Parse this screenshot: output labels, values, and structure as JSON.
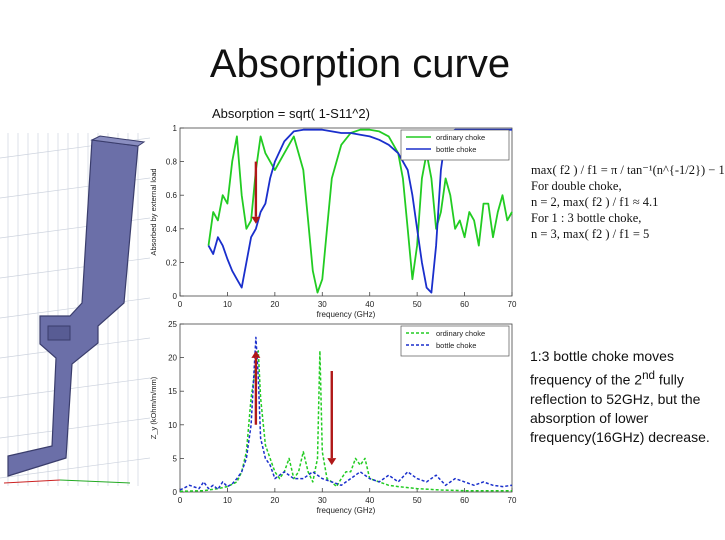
{
  "slide": {
    "title": "Absorption curve",
    "subtitle": "Absorption = sqrt( 1-S11^2)",
    "formula_lines": [
      "max( f2 ) / f1 = π / tan⁻¹(n^{-1/2}) − 1",
      "For double choke,",
      "n = 2, max( f2 ) / f1 ≈ 4.1",
      "For 1 : 3 bottle choke,",
      "n = 3, max( f2 ) / f1 = 5"
    ],
    "note": "1:3 bottle choke moves frequency of the 2nd fully reflection to 52GHz, but the absorption of lower frequency(16GHz) decrease.",
    "note_parts": {
      "before": "1:3 bottle choke moves frequency of the 2",
      "sup": "nd",
      "after": " fully reflection to 52GHz, but the absorption of lower frequency(16GHz) decrease."
    },
    "model_image": "3d-choke-cross-section-model"
  },
  "chart_data": [
    {
      "type": "line",
      "title": "",
      "xlabel": "frequency (GHz)",
      "ylabel": "Absorbed by external load",
      "xlim": [
        0,
        70
      ],
      "ylim": [
        0,
        1
      ],
      "x_ticks": [
        "0",
        "10",
        "20",
        "30",
        "40",
        "50",
        "60",
        "70"
      ],
      "y_ticks": [
        "0",
        "0.2",
        "0.4",
        "0.6",
        "0.8",
        "1"
      ],
      "legend": "top-right",
      "series": [
        {
          "name": "ordinary choke",
          "color": "#22cc22",
          "dash": false,
          "x": [
            6,
            7,
            8,
            9,
            10,
            11,
            12,
            13,
            14,
            15,
            16,
            17,
            18,
            20,
            22,
            24,
            26,
            27,
            28,
            29,
            30,
            31,
            32,
            34,
            36,
            38,
            40,
            42,
            44,
            46,
            47,
            48,
            49,
            50,
            51,
            52,
            53,
            54,
            55,
            56,
            57,
            58,
            59,
            60,
            61,
            62,
            63,
            64,
            65,
            66,
            67,
            68,
            69,
            70
          ],
          "y": [
            0.3,
            0.5,
            0.45,
            0.6,
            0.55,
            0.8,
            0.95,
            0.6,
            0.4,
            0.45,
            0.75,
            0.95,
            0.85,
            0.75,
            0.85,
            0.95,
            0.75,
            0.45,
            0.15,
            0.02,
            0.1,
            0.4,
            0.7,
            0.9,
            0.97,
            0.99,
            0.99,
            0.98,
            0.95,
            0.85,
            0.7,
            0.4,
            0.1,
            0.3,
            0.7,
            0.85,
            0.7,
            0.4,
            0.5,
            0.7,
            0.6,
            0.4,
            0.45,
            0.35,
            0.5,
            0.45,
            0.3,
            0.55,
            0.55,
            0.35,
            0.5,
            0.6,
            0.45,
            0.5
          ]
        },
        {
          "name": "bottle choke",
          "color": "#1a2fcc",
          "dash": false,
          "x": [
            6,
            7,
            8,
            9,
            10,
            11,
            12,
            13,
            14,
            15,
            16,
            17,
            18,
            19,
            20,
            22,
            24,
            26,
            28,
            30,
            32,
            34,
            36,
            38,
            40,
            42,
            44,
            46,
            48,
            49,
            50,
            51,
            52,
            53,
            54,
            55,
            56,
            58,
            60,
            62,
            64,
            66,
            68,
            70
          ],
          "y": [
            0.3,
            0.25,
            0.35,
            0.3,
            0.22,
            0.15,
            0.1,
            0.05,
            0.2,
            0.35,
            0.4,
            0.5,
            0.55,
            0.7,
            0.8,
            0.92,
            0.98,
            0.99,
            0.99,
            0.99,
            0.98,
            0.97,
            0.97,
            0.96,
            0.95,
            0.93,
            0.9,
            0.85,
            0.75,
            0.6,
            0.4,
            0.2,
            0.05,
            0.02,
            0.3,
            0.75,
            0.95,
            0.99,
            0.99,
            0.99,
            0.99,
            0.99,
            0.99,
            0.99
          ]
        }
      ]
    },
    {
      "type": "line",
      "title": "",
      "xlabel": "frequency (GHz)",
      "ylabel": "Z_y (kOhm/m/mm)",
      "xlim": [
        0,
        70
      ],
      "ylim": [
        0,
        25
      ],
      "x_ticks": [
        "0",
        "10",
        "20",
        "30",
        "40",
        "50",
        "60",
        "70"
      ],
      "y_ticks": [
        "0",
        "5",
        "10",
        "15",
        "20",
        "25"
      ],
      "legend": "top-right",
      "series": [
        {
          "name": "ordinary choke",
          "color": "#22cc22",
          "dash": true,
          "x": [
            0,
            5,
            8,
            10,
            12,
            13,
            14,
            15,
            16,
            16.5,
            17,
            18,
            19,
            20,
            21,
            22,
            23,
            24,
            25,
            26,
            27,
            28,
            29,
            29.5,
            30,
            31,
            32,
            33,
            34,
            35,
            36,
            37,
            38,
            39,
            40,
            42,
            44,
            46,
            50,
            55,
            60,
            65,
            70
          ],
          "y": [
            0.1,
            0.2,
            0.5,
            0.8,
            1.5,
            3,
            6,
            14,
            19,
            21,
            14,
            7,
            5,
            3,
            2,
            3,
            5,
            2,
            3,
            6,
            3,
            1.5,
            5,
            21,
            6,
            2,
            1.5,
            0.8,
            2,
            3,
            3,
            5,
            4,
            5,
            2,
            1.5,
            1,
            0.8,
            0.5,
            0.3,
            0.2,
            0.2,
            0.2
          ]
        },
        {
          "name": "bottle choke",
          "color": "#1a2fcc",
          "dash": true,
          "x": [
            0,
            2,
            4,
            5,
            6,
            7,
            8,
            9,
            10,
            11,
            12,
            13,
            14,
            15,
            16,
            16.5,
            17,
            18,
            19,
            20,
            22,
            24,
            26,
            28,
            30,
            32,
            34,
            36,
            38,
            40,
            42,
            44,
            46,
            48,
            50,
            52,
            54,
            56,
            58,
            60,
            62,
            64,
            66,
            68,
            70
          ],
          "y": [
            0.3,
            1,
            0.5,
            1.5,
            0.5,
            1,
            0.4,
            1.5,
            0.8,
            1.2,
            2,
            3,
            5,
            10,
            23,
            17,
            8,
            5,
            4,
            2,
            3,
            2,
            2,
            3,
            2,
            1.5,
            1,
            2,
            3,
            2,
            1.5,
            2.5,
            1.5,
            3,
            2,
            1.5,
            2.5,
            1,
            2,
            1.5,
            1,
            1.5,
            1,
            0.8,
            1
          ]
        }
      ]
    }
  ],
  "annotations": {
    "arrows_color": "#b01818",
    "top_chart_arrow": {
      "x": 16,
      "from_y": 0.8,
      "to_y": 0.43,
      "direction": "down"
    },
    "bottom_chart_arrows": [
      {
        "x": 16,
        "from_y": 10,
        "to_y": 21,
        "direction": "up"
      },
      {
        "x": 32,
        "from_y": 18,
        "to_y": 4,
        "direction": "down"
      }
    ]
  }
}
